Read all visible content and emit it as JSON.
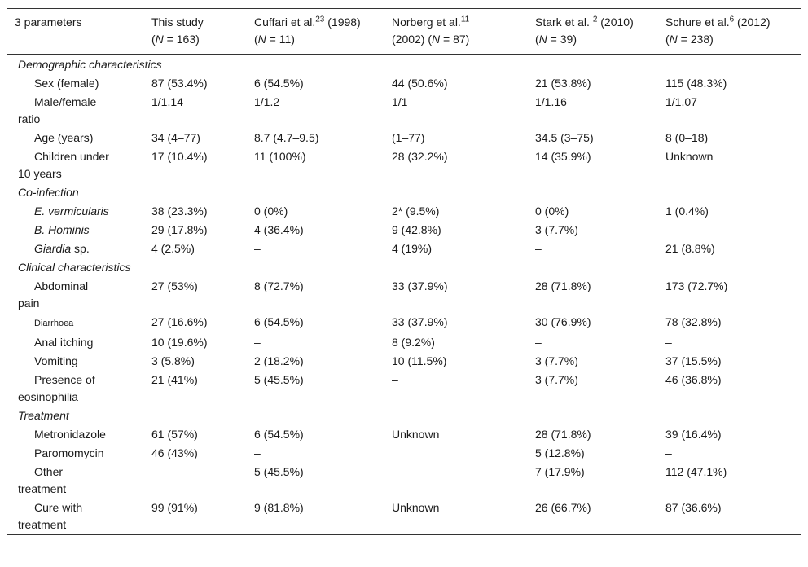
{
  "table": {
    "header": [
      [
        [
          {
            "text": "3 parameters"
          }
        ]
      ],
      [
        [
          {
            "text": "This study"
          }
        ],
        [
          {
            "text": "("
          },
          {
            "text": "N",
            "style": "italic"
          },
          {
            "text": " = 163)"
          }
        ]
      ],
      [
        [
          {
            "text": "Cuffari et al."
          },
          {
            "text": "23",
            "style": "sup"
          },
          {
            "text": " (1998)"
          }
        ],
        [
          {
            "text": "("
          },
          {
            "text": "N",
            "style": "italic"
          },
          {
            "text": " = 11)"
          }
        ]
      ],
      [
        [
          {
            "text": "Norberg et al."
          },
          {
            "text": "11",
            "style": "sup"
          }
        ],
        [
          {
            "text": "(2002) ("
          },
          {
            "text": "N",
            "style": "italic"
          },
          {
            "text": " = 87)"
          }
        ]
      ],
      [
        [
          {
            "text": "Stark et al. "
          },
          {
            "text": "2",
            "style": "sup"
          },
          {
            "text": " (2010)"
          }
        ],
        [
          {
            "text": "("
          },
          {
            "text": "N",
            "style": "italic"
          },
          {
            "text": " = 39)"
          }
        ]
      ],
      [
        [
          {
            "text": "Schure et al."
          },
          {
            "text": "6",
            "style": "sup"
          },
          {
            "text": " (2012)"
          }
        ],
        [
          {
            "text": "("
          },
          {
            "text": "N",
            "style": "italic"
          },
          {
            "text": " = 238)"
          }
        ]
      ]
    ],
    "sections": [
      {
        "title": "Demographic characteristics",
        "rows": [
          {
            "label": [
              {
                "text": "Sex (female)"
              }
            ],
            "cells": [
              "87 (53.4%)",
              "6 (54.5%)",
              "44 (50.6%)",
              "21 (53.8%)",
              "115 (48.3%)"
            ]
          },
          {
            "label": [
              {
                "text": "Male/female ratio"
              }
            ],
            "cells": [
              "1/1.14",
              "1/1.2",
              "1/1",
              "1/1.16",
              "1/1.07"
            ]
          },
          {
            "label": [
              {
                "text": "Age (years)"
              }
            ],
            "cells": [
              "34 (4–77)",
              "8.7 (4.7–9.5)",
              "(1–77)",
              "34.5 (3–75)",
              "8 (0–18)"
            ]
          },
          {
            "label": [
              {
                "text": "Children under 10 years"
              }
            ],
            "cells": [
              "17 (10.4%)",
              "11 (100%)",
              "28 (32.2%)",
              "14 (35.9%)",
              "Unknown"
            ]
          }
        ]
      },
      {
        "title": "Co-infection",
        "rows": [
          {
            "label": [
              {
                "text": "E. vermicularis",
                "style": "italic"
              }
            ],
            "cells": [
              "38 (23.3%)",
              "0 (0%)",
              "2* (9.5%)",
              "0 (0%)",
              "1 (0.4%)"
            ]
          },
          {
            "label": [
              {
                "text": "B. Hominis",
                "style": "italic"
              }
            ],
            "cells": [
              "29 (17.8%)",
              "4 (36.4%)",
              "9 (42.8%)",
              "3 (7.7%)",
              "–"
            ]
          },
          {
            "label": [
              {
                "text": "Giardia",
                "style": "italic"
              },
              {
                "text": " sp."
              }
            ],
            "cells": [
              "4 (2.5%)",
              "–",
              "4 (19%)",
              "–",
              "21 (8.8%)"
            ]
          }
        ]
      },
      {
        "title": "Clinical characteristics",
        "rows": [
          {
            "label": [
              {
                "text": "Abdominal pain"
              }
            ],
            "cells": [
              "27 (53%)",
              "8 (72.7%)",
              "33 (37.9%)",
              "28 (71.8%)",
              "173 (72.7%)"
            ]
          },
          {
            "label": [
              {
                "text": "Diarrhoea",
                "style": "small"
              }
            ],
            "cells": [
              "27 (16.6%)",
              "6 (54.5%)",
              "33 (37.9%)",
              "30 (76.9%)",
              "78 (32.8%)"
            ]
          },
          {
            "label": [
              {
                "text": "Anal itching"
              }
            ],
            "cells": [
              "10 (19.6%)",
              "–",
              "8 (9.2%)",
              "–",
              "–"
            ]
          },
          {
            "label": [
              {
                "text": "Vomiting"
              }
            ],
            "cells": [
              "3 (5.8%)",
              "2 (18.2%)",
              "10 (11.5%)",
              "3 (7.7%)",
              "37 (15.5%)"
            ]
          },
          {
            "label": [
              {
                "text": "Presence of eosinophilia"
              }
            ],
            "cells": [
              "21 (41%)",
              "5 (45.5%)",
              "–",
              "3 (7.7%)",
              "46 (36.8%)"
            ]
          }
        ]
      },
      {
        "title": "Treatment",
        "rows": [
          {
            "label": [
              {
                "text": "Metronidazole"
              }
            ],
            "cells": [
              "61 (57%)",
              "6 (54.5%)",
              "Unknown",
              "28 (71.8%)",
              "39 (16.4%)"
            ]
          },
          {
            "label": [
              {
                "text": "Paromomycin"
              }
            ],
            "cells": [
              "46 (43%)",
              "–",
              null,
              "5 (12.8%)",
              "–"
            ]
          },
          {
            "label": [
              {
                "text": "Other treatment"
              }
            ],
            "cells": [
              "–",
              "5 (45.5%)",
              null,
              "7 (17.9%)",
              "112 (47.1%)"
            ]
          },
          {
            "label": [
              {
                "text": "Cure with treatment"
              }
            ],
            "cells": [
              "99 (91%)",
              "9 (81.8%)",
              "Unknown",
              "26 (66.7%)",
              "87 (36.6%)"
            ]
          }
        ]
      }
    ]
  }
}
